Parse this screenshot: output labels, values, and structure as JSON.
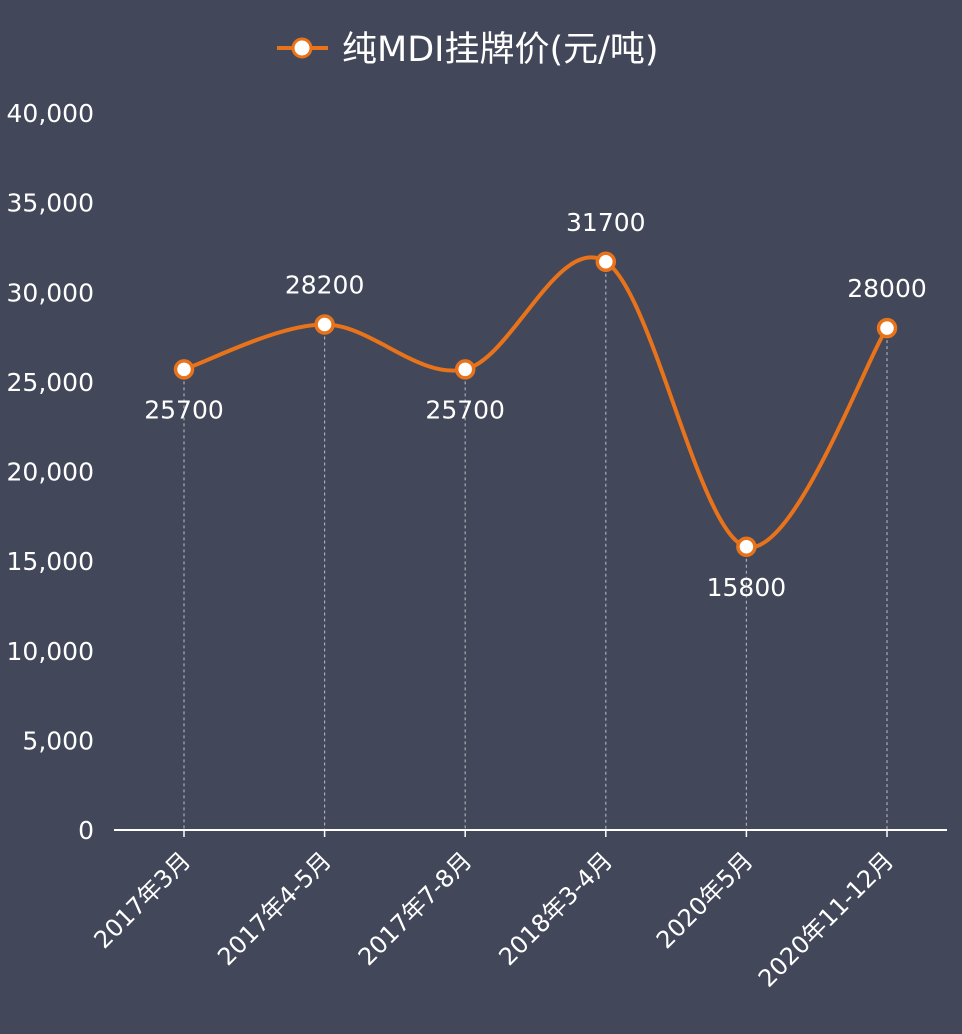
{
  "chart_data": {
    "type": "line",
    "smooth": true,
    "categories": [
      "2017年3月",
      "2017年4-5月",
      "2017年7-8月",
      "2018年3-4月",
      "2020年5月",
      "2020年11-12月"
    ],
    "series": [
      {
        "name": "纯MDI挂牌价(元/吨)",
        "values": [
          25700,
          28200,
          25700,
          31700,
          15800,
          28000
        ],
        "data_labels": [
          "25700",
          "28200",
          "25700",
          "31700",
          "15800",
          "28000"
        ],
        "label_positions": [
          "below",
          "above",
          "below",
          "above",
          "below",
          "above"
        ],
        "color": "#E8731A"
      }
    ],
    "ylim": [
      0,
      40000
    ],
    "yticks": [
      0,
      5000,
      10000,
      15000,
      20000,
      25000,
      30000,
      35000,
      40000
    ],
    "ytick_labels": [
      "0",
      "5,000",
      "10,000",
      "15,000",
      "20,000",
      "25,000",
      "30,000",
      "35,000",
      "40,000"
    ],
    "legend_position": "top",
    "grid": false,
    "drop_lines": true
  },
  "colors": {
    "background": "#424759",
    "line": "#E8731A",
    "marker_fill": "#FFFFFF",
    "text": "#FFFFFF",
    "axis": "#FFFFFF",
    "drop_line": "#A9ACB6"
  }
}
